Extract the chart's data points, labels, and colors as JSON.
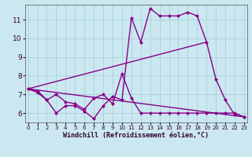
{
  "xlabel": "Windchill (Refroidissement éolien,°C)",
  "bg_color": "#cbe8f0",
  "line_color": "#880088",
  "grid_color": "#a0ccd8",
  "x_ticks": [
    0,
    1,
    2,
    3,
    4,
    5,
    6,
    7,
    8,
    9,
    10,
    11,
    12,
    13,
    14,
    15,
    16,
    17,
    18,
    19,
    20,
    21,
    22,
    23
  ],
  "y_ticks": [
    6,
    7,
    8,
    9,
    10,
    11
  ],
  "ylim": [
    5.5,
    11.8
  ],
  "xlim": [
    -0.3,
    23.3
  ],
  "line1_x": [
    0,
    1,
    2,
    3,
    4,
    5,
    6,
    7,
    8,
    9,
    10,
    11,
    12,
    13,
    14,
    15,
    16,
    17,
    18,
    19,
    20,
    21,
    22,
    23
  ],
  "line1_y": [
    7.3,
    7.2,
    6.7,
    6.0,
    6.4,
    6.4,
    6.1,
    5.7,
    6.4,
    6.9,
    6.7,
    11.1,
    9.8,
    11.6,
    11.2,
    11.2,
    11.2,
    11.4,
    11.2,
    9.8,
    7.8,
    6.7,
    5.9,
    5.8
  ],
  "line2_x": [
    0,
    23
  ],
  "line2_y": [
    7.3,
    5.8
  ],
  "line3_x": [
    0,
    19
  ],
  "line3_y": [
    7.3,
    9.8
  ],
  "line4_x": [
    0,
    1,
    2,
    3,
    4,
    5,
    6,
    7,
    8,
    9,
    10,
    11,
    12,
    13,
    14,
    15,
    16,
    17,
    18,
    19,
    20,
    21,
    22,
    23
  ],
  "line4_y": [
    7.3,
    7.1,
    6.7,
    7.0,
    6.6,
    6.5,
    6.2,
    6.8,
    7.0,
    6.5,
    8.1,
    6.8,
    6.0,
    6.0,
    6.0,
    6.0,
    6.0,
    6.0,
    6.0,
    6.0,
    6.0,
    6.0,
    6.0,
    5.8
  ],
  "markersize": 2.5,
  "linewidth": 1.0
}
